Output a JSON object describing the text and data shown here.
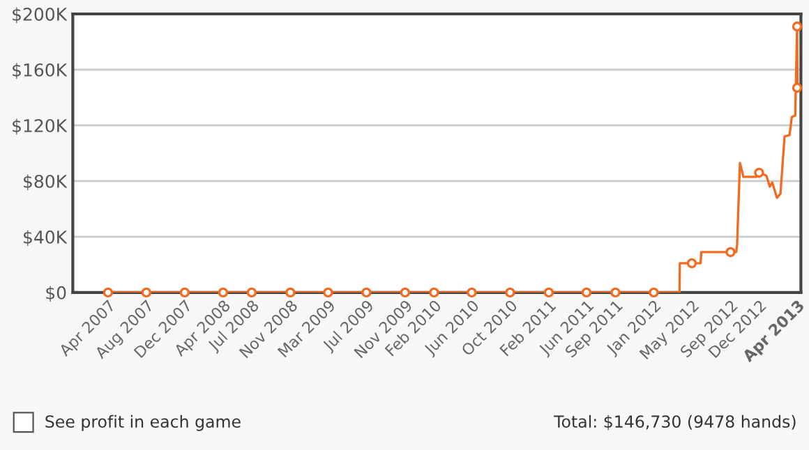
{
  "chart_data": {
    "type": "line",
    "x": [
      "2007-04-01",
      "2012-01-01",
      "2012-03-23",
      "2012-03-24",
      "2012-05-01",
      "2012-05-29",
      "2012-05-31",
      "2012-09-01",
      "2012-09-19",
      "2012-09-22",
      "2012-10-01",
      "2012-10-12",
      "2012-11-22",
      "2012-12-01",
      "2012-12-24",
      "2013-01-04",
      "2013-01-12",
      "2013-01-27",
      "2013-02-07",
      "2013-02-20",
      "2013-03-08",
      "2013-03-15",
      "2013-03-26",
      "2013-04-01",
      "2013-04-02"
    ],
    "series": [
      {
        "color": "#f26b21",
        "values": [
          0,
          0,
          0,
          21000,
          21000,
          21000,
          29000,
          29000,
          29000,
          34000,
          93000,
          83000,
          83000,
          86000,
          84000,
          76000,
          79000,
          68000,
          71000,
          112000,
          113000,
          126000,
          127000,
          191000,
          147000
        ]
      },
      {
        "type": "scatter",
        "marker": "circle",
        "color": "#f26b21",
        "x": [
          "2007-04",
          "2007-08",
          "2007-12",
          "2008-04",
          "2008-07",
          "2008-11",
          "2009-03",
          "2009-07",
          "2009-11",
          "2010-02",
          "2010-06",
          "2010-10",
          "2011-02",
          "2011-06",
          "2011-09",
          "2012-01",
          "2012-05",
          "2012-09",
          "2012-12",
          "2013-04",
          "2013-04"
        ],
        "values": [
          0,
          0,
          0,
          0,
          0,
          0,
          0,
          0,
          0,
          0,
          0,
          0,
          0,
          0,
          0,
          0,
          21000,
          29000,
          86000,
          191000,
          147000
        ]
      }
    ],
    "xlim": [
      "2006-12-10",
      "2013-04-13"
    ],
    "xticks": [
      {
        "value": "2007-04",
        "label": "Apr 2007"
      },
      {
        "value": "2007-08",
        "label": "Aug 2007"
      },
      {
        "value": "2007-12",
        "label": "Dec 2007"
      },
      {
        "value": "2008-04",
        "label": "Apr 2008"
      },
      {
        "value": "2008-07",
        "label": "Jul 2008"
      },
      {
        "value": "2008-11",
        "label": "Nov 2008"
      },
      {
        "value": "2009-03",
        "label": "Mar 2009"
      },
      {
        "value": "2009-07",
        "label": "Jul 2009"
      },
      {
        "value": "2009-11",
        "label": "Nov 2009"
      },
      {
        "value": "2010-02",
        "label": "Feb 2010"
      },
      {
        "value": "2010-06",
        "label": "Jun 2010"
      },
      {
        "value": "2010-10",
        "label": "Oct 2010"
      },
      {
        "value": "2011-02",
        "label": "Feb 2011"
      },
      {
        "value": "2011-06",
        "label": "Jun 2011"
      },
      {
        "value": "2011-09",
        "label": "Sep 2011"
      },
      {
        "value": "2012-01",
        "label": "Jan 2012"
      },
      {
        "value": "2012-05",
        "label": "May 2012"
      },
      {
        "value": "2012-09",
        "label": "Sep 2012"
      },
      {
        "value": "2012-12",
        "label": "Dec 2012"
      },
      {
        "value": "2013-04",
        "label": "Apr 2013"
      }
    ],
    "ylim": [
      0,
      200000
    ],
    "yticks": [
      {
        "value": 0,
        "label": "$0"
      },
      {
        "value": 40000,
        "label": "$40K"
      },
      {
        "value": 80000,
        "label": "$80K"
      },
      {
        "value": 120000,
        "label": "$120K"
      },
      {
        "value": 160000,
        "label": "$160K"
      },
      {
        "value": 200000,
        "label": "$200K"
      }
    ],
    "grid": "y",
    "line_style": "solid",
    "legend": false,
    "annotations": [
      "See profit in each game",
      "Total: $146,730 (9478 hands)"
    ]
  }
}
